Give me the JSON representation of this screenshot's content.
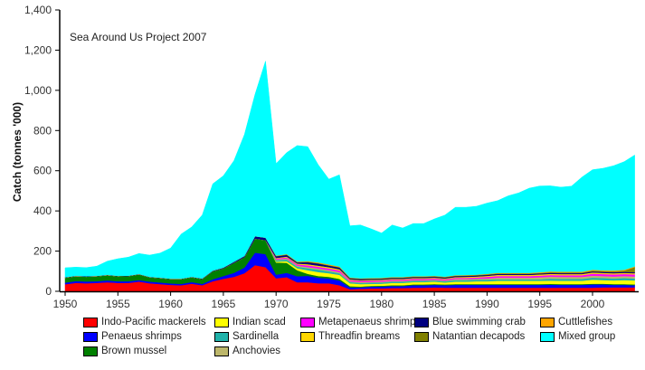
{
  "chart_data": {
    "type": "area",
    "stacked": true,
    "title": "",
    "annotation": "Sea Around Us Project 2007",
    "xlabel": "",
    "ylabel": "Catch (tonnes '000)",
    "xlim": [
      1950,
      2004
    ],
    "ylim": [
      0,
      1400
    ],
    "y_ticks": [
      0,
      200,
      400,
      600,
      800,
      1000,
      1200,
      1400
    ],
    "y_tick_labels": [
      "0",
      "200",
      "400",
      "600",
      "800",
      "1,000",
      "1,200",
      "1,400"
    ],
    "x_ticks": [
      1950,
      1955,
      1960,
      1965,
      1970,
      1975,
      1980,
      1985,
      1990,
      1995,
      2000
    ],
    "x_tick_labels": [
      "1950",
      "1955",
      "1960",
      "1965",
      "1970",
      "1975",
      "1980",
      "1985",
      "1990",
      "1995",
      "2000"
    ],
    "grid": false,
    "legend_position": "bottom",
    "x": [
      1950,
      1951,
      1952,
      1953,
      1954,
      1955,
      1956,
      1957,
      1958,
      1959,
      1960,
      1961,
      1962,
      1963,
      1964,
      1965,
      1966,
      1967,
      1968,
      1969,
      1970,
      1971,
      1972,
      1973,
      1974,
      1975,
      1976,
      1977,
      1978,
      1979,
      1980,
      1981,
      1982,
      1983,
      1984,
      1985,
      1986,
      1987,
      1988,
      1989,
      1990,
      1991,
      1992,
      1993,
      1994,
      1995,
      1996,
      1997,
      1998,
      1999,
      2000,
      2001,
      2002,
      2003,
      2004
    ],
    "series": [
      {
        "name": "Indo-Pacific mackerels",
        "color": "#ff0000",
        "values": [
          35,
          42,
          40,
          42,
          45,
          42,
          42,
          48,
          40,
          36,
          32,
          30,
          38,
          30,
          50,
          62,
          72,
          90,
          130,
          120,
          65,
          70,
          45,
          45,
          40,
          40,
          30,
          10,
          12,
          14,
          15,
          16,
          16,
          18,
          18,
          20,
          18,
          18,
          18,
          18,
          18,
          18,
          18,
          18,
          18,
          18,
          18,
          18,
          18,
          18,
          18,
          20,
          20,
          20,
          20
        ]
      },
      {
        "name": "Penaeus shrimps",
        "color": "#0000ff",
        "values": [
          8,
          9,
          9,
          8,
          9,
          8,
          8,
          8,
          8,
          8,
          7,
          7,
          8,
          7,
          10,
          14,
          20,
          28,
          62,
          65,
          18,
          22,
          30,
          32,
          28,
          24,
          24,
          10,
          8,
          9,
          9,
          10,
          10,
          12,
          12,
          12,
          12,
          14,
          14,
          14,
          14,
          14,
          14,
          14,
          14,
          14,
          15,
          14,
          14,
          14,
          16,
          14,
          12,
          12,
          10
        ]
      },
      {
        "name": "Brown mussel",
        "color": "#008000",
        "values": [
          25,
          24,
          24,
          25,
          26,
          25,
          26,
          28,
          22,
          22,
          22,
          24,
          24,
          24,
          40,
          38,
          50,
          52,
          70,
          70,
          60,
          50,
          30,
          10,
          8,
          8,
          8,
          5,
          4,
          4,
          4,
          4,
          4,
          4,
          4,
          4,
          4,
          4,
          4,
          4,
          4,
          4,
          4,
          4,
          4,
          4,
          4,
          4,
          4,
          4,
          4,
          4,
          4,
          4,
          4
        ]
      },
      {
        "name": "Indian scad",
        "color": "#ffff00",
        "values": [
          0,
          0,
          0,
          0,
          0,
          0,
          0,
          0,
          0,
          0,
          0,
          0,
          0,
          0,
          0,
          0,
          0,
          0,
          0,
          0,
          5,
          8,
          10,
          18,
          20,
          18,
          20,
          15,
          12,
          10,
          10,
          12,
          12,
          12,
          12,
          12,
          10,
          12,
          12,
          14,
          14,
          16,
          16,
          16,
          16,
          16,
          16,
          16,
          16,
          16,
          20,
          18,
          18,
          20,
          20
        ]
      },
      {
        "name": "Sardinella",
        "color": "#20b2aa",
        "values": [
          0,
          0,
          0,
          0,
          0,
          0,
          0,
          0,
          0,
          0,
          0,
          0,
          0,
          0,
          0,
          0,
          0,
          0,
          0,
          0,
          6,
          8,
          8,
          10,
          12,
          10,
          8,
          6,
          6,
          6,
          6,
          6,
          6,
          6,
          6,
          6,
          6,
          8,
          8,
          8,
          8,
          8,
          8,
          8,
          8,
          8,
          10,
          10,
          10,
          10,
          10,
          10,
          10,
          10,
          10
        ]
      },
      {
        "name": "Anchovies",
        "color": "#bdb76b",
        "values": [
          0,
          0,
          0,
          0,
          0,
          0,
          0,
          0,
          0,
          0,
          0,
          0,
          0,
          0,
          0,
          0,
          0,
          0,
          0,
          0,
          4,
          5,
          5,
          6,
          6,
          6,
          6,
          4,
          4,
          4,
          4,
          4,
          4,
          4,
          4,
          4,
          4,
          5,
          5,
          5,
          6,
          8,
          8,
          8,
          8,
          10,
          10,
          10,
          10,
          10,
          10,
          10,
          10,
          10,
          10
        ]
      },
      {
        "name": "Metapenaeus shrimps",
        "color": "#ff00ff",
        "values": [
          0,
          0,
          0,
          0,
          0,
          0,
          0,
          0,
          0,
          0,
          0,
          0,
          0,
          0,
          0,
          0,
          0,
          0,
          0,
          0,
          5,
          6,
          6,
          8,
          8,
          8,
          8,
          6,
          6,
          6,
          6,
          6,
          6,
          6,
          6,
          6,
          6,
          6,
          6,
          6,
          8,
          8,
          8,
          8,
          8,
          8,
          8,
          8,
          8,
          8,
          10,
          10,
          10,
          10,
          10
        ]
      },
      {
        "name": "Threadfin breams",
        "color": "#ffd700",
        "values": [
          0,
          0,
          0,
          0,
          0,
          0,
          0,
          0,
          0,
          0,
          0,
          0,
          0,
          0,
          0,
          0,
          0,
          0,
          0,
          0,
          3,
          4,
          4,
          6,
          6,
          6,
          6,
          4,
          4,
          4,
          4,
          4,
          4,
          4,
          4,
          4,
          4,
          4,
          5,
          5,
          5,
          6,
          6,
          6,
          6,
          6,
          6,
          6,
          6,
          6,
          6,
          6,
          6,
          6,
          6
        ]
      },
      {
        "name": "Blue swimming crab",
        "color": "#000080",
        "values": [
          2,
          2,
          2,
          2,
          2,
          2,
          2,
          2,
          2,
          2,
          2,
          2,
          2,
          3,
          3,
          4,
          5,
          6,
          12,
          12,
          8,
          8,
          6,
          10,
          10,
          8,
          8,
          5,
          5,
          5,
          5,
          5,
          5,
          5,
          5,
          5,
          5,
          5,
          5,
          5,
          5,
          5,
          5,
          5,
          5,
          5,
          5,
          5,
          5,
          5,
          5,
          5,
          5,
          5,
          5
        ]
      },
      {
        "name": "Natantian decapods",
        "color": "#808000",
        "values": [
          0,
          0,
          0,
          0,
          0,
          0,
          0,
          0,
          0,
          0,
          0,
          0,
          0,
          0,
          0,
          0,
          0,
          0,
          0,
          0,
          2,
          2,
          2,
          2,
          2,
          2,
          2,
          2,
          2,
          2,
          2,
          2,
          2,
          2,
          2,
          2,
          2,
          2,
          2,
          2,
          2,
          2,
          2,
          2,
          2,
          2,
          3,
          3,
          3,
          3,
          4,
          4,
          5,
          6,
          25
        ]
      },
      {
        "name": "Cuttlefishes",
        "color": "#ffa500",
        "values": [
          0,
          0,
          0,
          0,
          0,
          0,
          0,
          0,
          0,
          0,
          0,
          0,
          0,
          0,
          0,
          0,
          0,
          0,
          0,
          0,
          2,
          2,
          2,
          4,
          4,
          4,
          4,
          2,
          2,
          2,
          2,
          2,
          2,
          2,
          2,
          2,
          2,
          2,
          2,
          2,
          3,
          3,
          3,
          3,
          3,
          4,
          4,
          4,
          4,
          4,
          4,
          4,
          4,
          4,
          4
        ]
      },
      {
        "name": "Mixed group",
        "color": "#00ffff",
        "values": [
          47,
          43,
          43,
          48,
          68,
          85,
          92,
          102,
          108,
          122,
          152,
          222,
          248,
          316,
          432,
          457,
          503,
          604,
          706,
          878,
          457,
          505,
          577,
          569,
          486,
          424,
          456,
          257,
          265,
          245,
          223,
          259,
          244,
          262,
          262,
          283,
          306,
          338,
          337,
          340,
          352,
          359,
          383,
          398,
          421,
          429,
          426,
          420,
          425,
          470,
          498,
          507,
          521,
          538,
          554
        ]
      }
    ]
  }
}
